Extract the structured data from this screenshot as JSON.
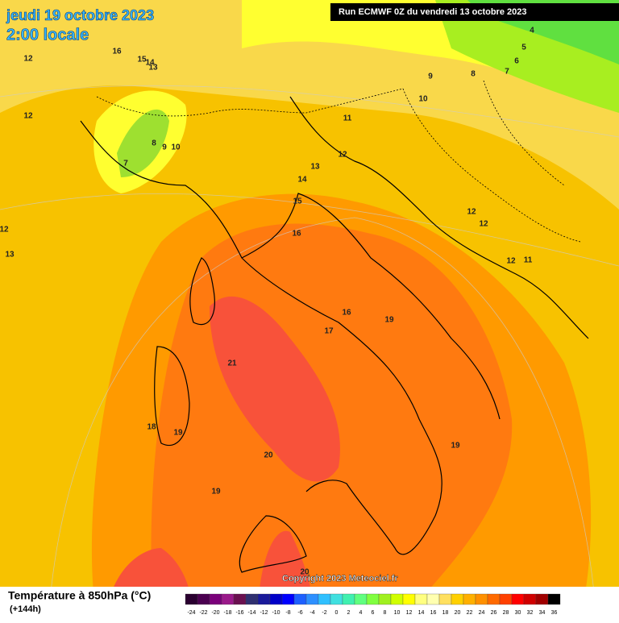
{
  "header": {
    "date": "jeudi 19 octobre 2023",
    "time": "2:00 locale"
  },
  "run": "Run ECMWF 0Z du vendredi 13 octobre 2023",
  "copyright": "Copyright 2023 Meteociel.fr",
  "legend": {
    "title": "Température à 850hPa (°C)",
    "subtitle": "(+144h)",
    "ticks": [
      -24,
      -22,
      -20,
      -18,
      -16,
      -14,
      -12,
      -10,
      -8,
      -6,
      -4,
      -2,
      0,
      2,
      4,
      6,
      8,
      10,
      12,
      14,
      16,
      18,
      20,
      22,
      24,
      26,
      28,
      30,
      32,
      34,
      36
    ],
    "colors": [
      "#2a0030",
      "#4b0050",
      "#7a007a",
      "#9a1a8a",
      "#6a1050",
      "#303070",
      "#1a1a9a",
      "#0000c8",
      "#0000ff",
      "#1e60ff",
      "#2e90ff",
      "#30c0ff",
      "#40e0e0",
      "#40f0b0",
      "#60ff80",
      "#80ff40",
      "#a0f020",
      "#d0ff00",
      "#ffff00",
      "#ffff80",
      "#ffffb0",
      "#ffe060",
      "#ffd000",
      "#ffb000",
      "#ff9000",
      "#ff6a00",
      "#ff4000",
      "#ff0000",
      "#d00000",
      "#a00000",
      "#000000"
    ]
  },
  "contour_labels": [
    12,
    16,
    15,
    14,
    13,
    12,
    8,
    9,
    10,
    7,
    4,
    5,
    6,
    7,
    8,
    9,
    10,
    11,
    12,
    13,
    14,
    15,
    16,
    12,
    12,
    12,
    11,
    12,
    13,
    16,
    17,
    19,
    21,
    18,
    19,
    20,
    19,
    19,
    20
  ]
}
